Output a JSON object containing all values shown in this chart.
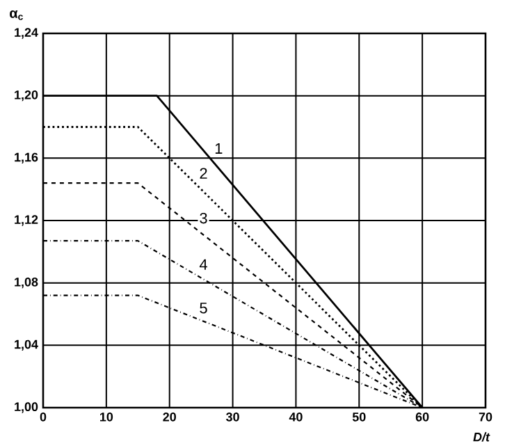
{
  "chart_data": {
    "type": "line",
    "xlabel": "D/t",
    "ylabel": "α$_{c}$",
    "xlim": [
      0,
      70
    ],
    "ylim": [
      1.0,
      1.24
    ],
    "xticks": [
      0,
      10,
      20,
      30,
      40,
      50,
      60,
      70
    ],
    "yticks": [
      {
        "value": 1.0,
        "label": "1,00"
      },
      {
        "value": 1.04,
        "label": "1,04"
      },
      {
        "value": 1.08,
        "label": "1,08"
      },
      {
        "value": 1.12,
        "label": "1,12"
      },
      {
        "value": 1.16,
        "label": "1,16"
      },
      {
        "value": 1.2,
        "label": "1,20"
      },
      {
        "value": 1.24,
        "label": "1,24"
      }
    ],
    "grid": true,
    "marker": "none",
    "series": [
      {
        "color": "#000000",
        "line_style": "solid",
        "x": [
          0,
          18,
          60
        ],
        "values": [
          1.2,
          1.2,
          1.0
        ]
      },
      {
        "color": "#000000",
        "line_style": "dotted",
        "x": [
          0,
          15,
          60
        ],
        "values": [
          1.18,
          1.18,
          1.0
        ]
      },
      {
        "color": "#000000",
        "line_style": "dashed",
        "x": [
          0,
          15,
          60
        ],
        "values": [
          1.144,
          1.144,
          1.0
        ]
      },
      {
        "color": "#000000",
        "line_style": "dashdot",
        "x": [
          0,
          15,
          60
        ],
        "values": [
          1.107,
          1.107,
          1.0
        ]
      },
      {
        "color": "#000000",
        "line_style": "dashdot",
        "x": [
          0,
          15,
          60
        ],
        "values": [
          1.072,
          1.072,
          1.0
        ]
      }
    ],
    "annotations": [
      "1",
      "2",
      "3",
      "4",
      "5"
    ]
  }
}
